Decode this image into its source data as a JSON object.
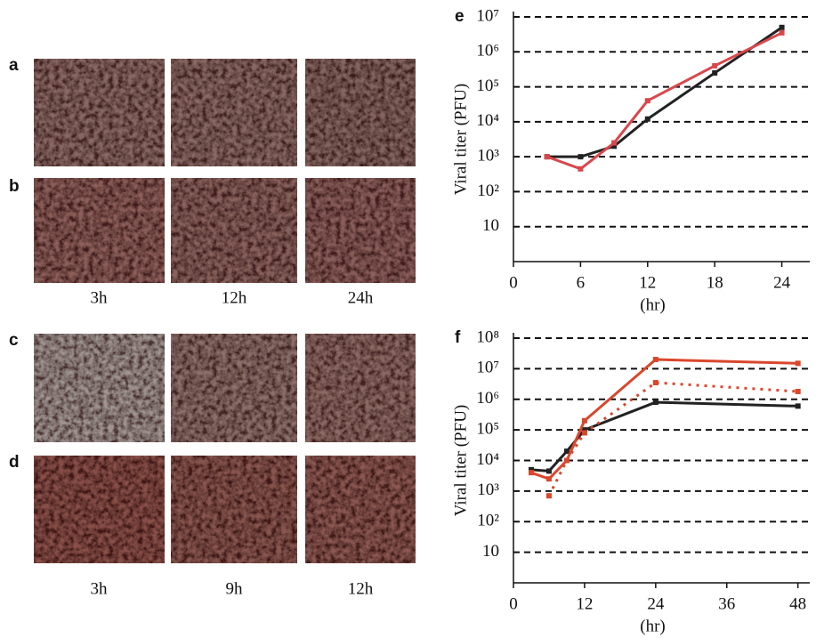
{
  "panel_labels": [
    "a",
    "b",
    "c",
    "d"
  ],
  "time_labels_top": [
    "3h",
    "12h",
    "24h"
  ],
  "time_labels_bottom": [
    "3h",
    "9h",
    "12h"
  ],
  "chart_data": [
    {
      "type": "line",
      "panel_label": "e",
      "y_label": "Viral titer (PFU)",
      "x_label": "(hr)",
      "x": [
        3,
        6,
        9,
        12,
        18,
        24
      ],
      "series": [
        {
          "color": "#222222",
          "line_style": "solid",
          "values": [
            1000,
            1000,
            2000,
            12000,
            250000,
            5000000
          ]
        },
        {
          "color": "#d9474c",
          "line_style": "solid",
          "values": [
            1000,
            450,
            2500,
            40000,
            400000,
            3500000
          ]
        }
      ],
      "xlim": [
        0,
        26.5
      ],
      "xticks": [
        0,
        6,
        12,
        18,
        24
      ],
      "ylim": [
        1,
        10000000
      ],
      "log_y": true,
      "grid": true,
      "yticks": [
        10,
        {
          "value": 100,
          "label": "10²"
        },
        {
          "value": 1000,
          "label": "10³"
        },
        {
          "value": 10000,
          "label": "10⁴"
        },
        {
          "value": 100000,
          "label": "10⁵"
        },
        {
          "value": 1000000,
          "label": "10⁶"
        },
        {
          "value": 10000000,
          "label": "10⁷"
        }
      ]
    },
    {
      "type": "line",
      "panel_label": "f",
      "y_label": "Viral titer (PFU)",
      "x_label": "(hr)",
      "x": [
        3,
        6,
        9,
        12,
        24,
        48
      ],
      "series": [
        {
          "color": "#222222",
          "line_style": "solid",
          "values": [
            5000,
            4500,
            20000,
            100000,
            800000,
            600000
          ]
        },
        {
          "color": "#d9472c",
          "line_style": "solid",
          "values": [
            4000,
            2500,
            10000,
            200000,
            20000000,
            15000000
          ]
        },
        {
          "color": "#d9472c",
          "line_style": "dotted",
          "values": [
            null,
            700,
            10000,
            80000,
            3500000,
            1800000
          ]
        }
      ],
      "xlim": [
        0,
        50
      ],
      "xticks": [
        0,
        12,
        24,
        36,
        48
      ],
      "ylim": [
        1,
        100000000
      ],
      "log_y": true,
      "grid": true,
      "yticks": [
        10,
        {
          "value": 100,
          "label": "10²"
        },
        {
          "value": 1000,
          "label": "10³"
        },
        {
          "value": 10000,
          "label": "10⁴"
        },
        {
          "value": 100000,
          "label": "10⁵"
        },
        {
          "value": 1000000,
          "label": "10⁶"
        },
        {
          "value": 10000000,
          "label": "10⁷"
        },
        {
          "value": 100000000,
          "label": "10⁸"
        }
      ]
    }
  ]
}
